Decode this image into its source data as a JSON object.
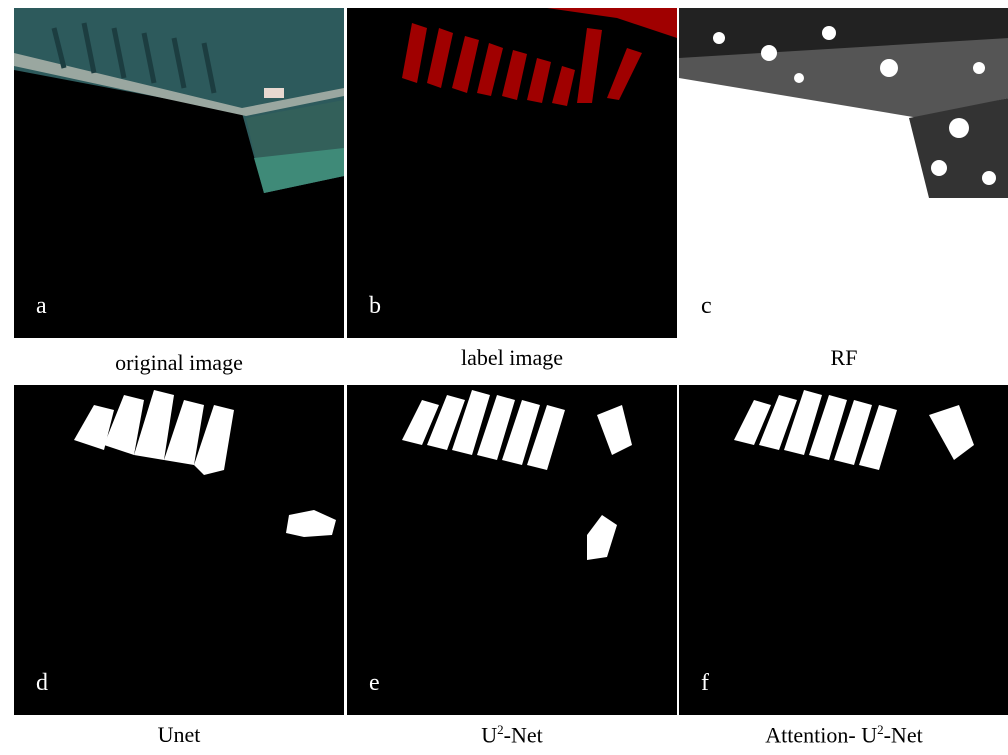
{
  "panels": [
    {
      "letter": "a",
      "caption": [
        "original image"
      ]
    },
    {
      "letter": "b",
      "caption": [
        "label image"
      ]
    },
    {
      "letter": "c",
      "caption": [
        "RF"
      ]
    },
    {
      "letter": "d",
      "caption": [
        "Unet"
      ]
    },
    {
      "letter": "e",
      "caption": [
        "U",
        "2",
        "-Net"
      ]
    },
    {
      "letter": "f",
      "caption": [
        "Attention- U",
        "2",
        "-Net"
      ]
    }
  ]
}
